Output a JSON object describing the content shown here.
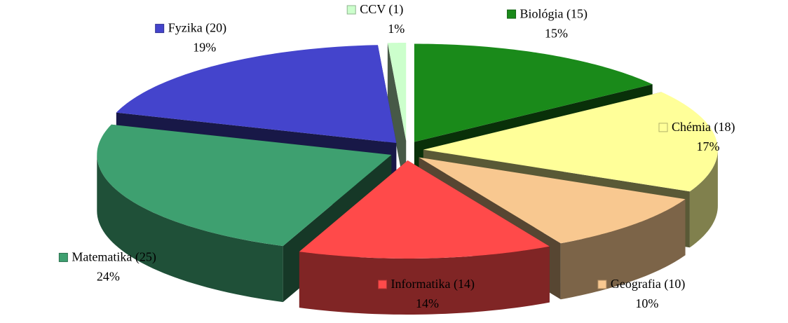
{
  "chart_data": {
    "type": "pie3d",
    "categories": [
      "Biológia (15)",
      "Chémia (18)",
      "Geografia (10)",
      "Informatika (14)",
      "Matematika (25)",
      "Fyzika (20)",
      "CCV (1)"
    ],
    "values": [
      15,
      17,
      10,
      14,
      24,
      19,
      1
    ],
    "value_labels": [
      "15%",
      "17%",
      "10%",
      "14%",
      "24%",
      "19%",
      "1%"
    ],
    "colors": [
      "#1a8a1a",
      "#ffff99",
      "#f8c890",
      "#ff4a4a",
      "#3ea070",
      "#4444cc",
      "#ccffcc"
    ]
  }
}
